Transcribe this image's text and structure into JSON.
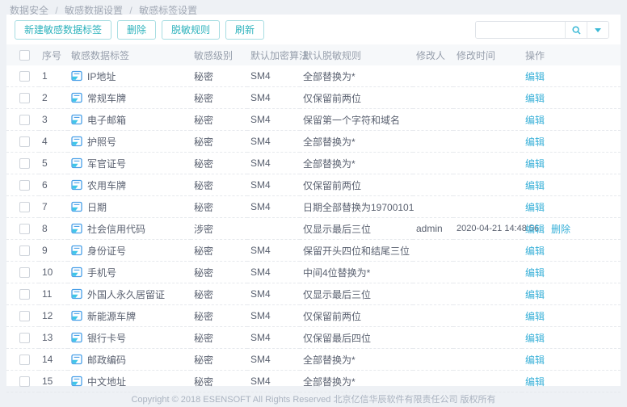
{
  "breadcrumb": {
    "separator": "/",
    "items": [
      "数据安全",
      "敏感数据设置",
      "敏感标签设置"
    ]
  },
  "toolbar": {
    "new_label_button": "新建敏感数据标签",
    "delete_button": "删除",
    "mask_rule_button": "脱敏规则",
    "refresh_button": "刷新",
    "search": {
      "value": "",
      "placeholder": ""
    }
  },
  "icons": {
    "row_label": "tag-icon",
    "search": "search-icon",
    "dropdown": "caret-down-icon"
  },
  "colors": {
    "accent_teal": "#2fb3bd",
    "link_cyan": "#38b0d8",
    "page_background": "#eef1f5",
    "header_row_background": "#f6f8fa",
    "body_text": "#5a6170",
    "muted_text": "#98a0ad"
  },
  "table": {
    "headers": [
      "序号",
      "敏感数据标签",
      "敏感级别",
      "默认加密算法",
      "默认脱敏规则",
      "修改人",
      "修改时间",
      "操作"
    ],
    "rows": [
      {
        "index": "1",
        "label": "IP地址",
        "level": "秘密",
        "algorithm": "SM4",
        "rule": "全部替换为*",
        "modifier": "",
        "modified_at": "",
        "actions": [
          {
            "name": "edit-link",
            "label": "编辑"
          }
        ]
      },
      {
        "index": "2",
        "label": "常规车牌",
        "level": "秘密",
        "algorithm": "SM4",
        "rule": "仅保留前两位",
        "modifier": "",
        "modified_at": "",
        "actions": [
          {
            "name": "edit-link",
            "label": "编辑"
          }
        ]
      },
      {
        "index": "3",
        "label": "电子邮箱",
        "level": "秘密",
        "algorithm": "SM4",
        "rule": "保留第一个字符和域名",
        "modifier": "",
        "modified_at": "",
        "actions": [
          {
            "name": "edit-link",
            "label": "编辑"
          }
        ]
      },
      {
        "index": "4",
        "label": "护照号",
        "level": "秘密",
        "algorithm": "SM4",
        "rule": "全部替换为*",
        "modifier": "",
        "modified_at": "",
        "actions": [
          {
            "name": "edit-link",
            "label": "编辑"
          }
        ]
      },
      {
        "index": "5",
        "label": "军官证号",
        "level": "秘密",
        "algorithm": "SM4",
        "rule": "全部替换为*",
        "modifier": "",
        "modified_at": "",
        "actions": [
          {
            "name": "edit-link",
            "label": "编辑"
          }
        ]
      },
      {
        "index": "6",
        "label": "农用车牌",
        "level": "秘密",
        "algorithm": "SM4",
        "rule": "仅保留前两位",
        "modifier": "",
        "modified_at": "",
        "actions": [
          {
            "name": "edit-link",
            "label": "编辑"
          }
        ]
      },
      {
        "index": "7",
        "label": "日期",
        "level": "秘密",
        "algorithm": "SM4",
        "rule": "日期全部替换为19700101",
        "modifier": "",
        "modified_at": "",
        "actions": [
          {
            "name": "edit-link",
            "label": "编辑"
          }
        ]
      },
      {
        "index": "8",
        "label": "社会信用代码",
        "level": "涉密",
        "algorithm": "",
        "rule": "仅显示最后三位",
        "modifier": "admin",
        "modified_at": "2020-04-21 14:48:56",
        "actions": [
          {
            "name": "edit-link",
            "label": "编辑"
          },
          {
            "name": "delete-link",
            "label": "删除"
          }
        ]
      },
      {
        "index": "9",
        "label": "身份证号",
        "level": "秘密",
        "algorithm": "SM4",
        "rule": "保留开头四位和结尾三位",
        "modifier": "",
        "modified_at": "",
        "actions": [
          {
            "name": "edit-link",
            "label": "编辑"
          }
        ]
      },
      {
        "index": "10",
        "label": "手机号",
        "level": "秘密",
        "algorithm": "SM4",
        "rule": "中间4位替换为*",
        "modifier": "",
        "modified_at": "",
        "actions": [
          {
            "name": "edit-link",
            "label": "编辑"
          }
        ]
      },
      {
        "index": "11",
        "label": "外国人永久居留证",
        "level": "秘密",
        "algorithm": "SM4",
        "rule": "仅显示最后三位",
        "modifier": "",
        "modified_at": "",
        "actions": [
          {
            "name": "edit-link",
            "label": "编辑"
          }
        ]
      },
      {
        "index": "12",
        "label": "新能源车牌",
        "level": "秘密",
        "algorithm": "SM4",
        "rule": "仅保留前两位",
        "modifier": "",
        "modified_at": "",
        "actions": [
          {
            "name": "edit-link",
            "label": "编辑"
          }
        ]
      },
      {
        "index": "13",
        "label": "银行卡号",
        "level": "秘密",
        "algorithm": "SM4",
        "rule": "仅保留最后四位",
        "modifier": "",
        "modified_at": "",
        "actions": [
          {
            "name": "edit-link",
            "label": "编辑"
          }
        ]
      },
      {
        "index": "14",
        "label": "邮政编码",
        "level": "秘密",
        "algorithm": "SM4",
        "rule": "全部替换为*",
        "modifier": "",
        "modified_at": "",
        "actions": [
          {
            "name": "edit-link",
            "label": "编辑"
          }
        ]
      },
      {
        "index": "15",
        "label": "中文地址",
        "level": "秘密",
        "algorithm": "SM4",
        "rule": "全部替换为*",
        "modifier": "",
        "modified_at": "",
        "actions": [
          {
            "name": "edit-link",
            "label": "编辑"
          }
        ]
      }
    ]
  },
  "footer": {
    "copyright": "Copyright © 2018 ESENSOFT All Rights Reserved 北京亿信华辰软件有限责任公司 版权所有"
  }
}
